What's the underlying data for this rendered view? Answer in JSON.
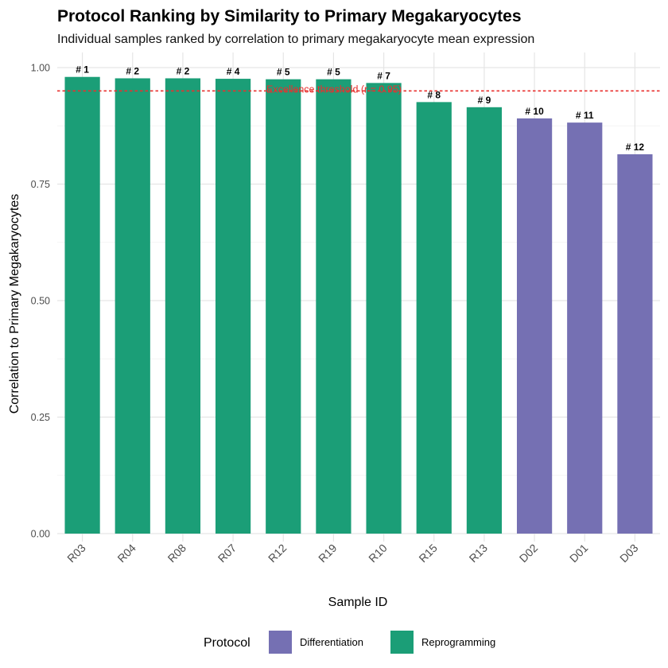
{
  "chart_data": {
    "type": "bar",
    "title": "Protocol Ranking by Similarity to Primary Megakaryocytes",
    "subtitle": "Individual samples ranked by correlation to primary megakaryocyte mean expression",
    "xlabel": "Sample ID",
    "ylabel": "Correlation to Primary Megakaryocytes",
    "ylim": [
      0,
      1.0
    ],
    "yticks": [
      0.0,
      0.25,
      0.5,
      0.75,
      1.0
    ],
    "ytick_labels": [
      "0.00",
      "0.25",
      "0.50",
      "0.75",
      "1.00"
    ],
    "grid": true,
    "categories": [
      "R03",
      "R04",
      "R08",
      "R07",
      "R12",
      "R19",
      "R10",
      "R15",
      "R13",
      "D02",
      "D01",
      "D03"
    ],
    "values": [
      0.98,
      0.977,
      0.977,
      0.976,
      0.975,
      0.975,
      0.967,
      0.926,
      0.915,
      0.891,
      0.882,
      0.814
    ],
    "rank_labels": [
      "# 1",
      "# 2",
      "# 2",
      "# 4",
      "# 5",
      "# 5",
      "# 7",
      "# 8",
      "# 9",
      "# 10",
      "# 11",
      "# 12"
    ],
    "groups": [
      "Reprogramming",
      "Reprogramming",
      "Reprogramming",
      "Reprogramming",
      "Reprogramming",
      "Reprogramming",
      "Reprogramming",
      "Reprogramming",
      "Reprogramming",
      "Differentiation",
      "Differentiation",
      "Differentiation"
    ],
    "threshold": {
      "value": 0.95,
      "label": "Excellence threshold (r = 0.95)",
      "color": "#e8312f"
    },
    "legend": {
      "title": "Protocol",
      "placement": "bottom",
      "entries": [
        {
          "name": "Differentiation",
          "color": "#7570b3"
        },
        {
          "name": "Reprogramming",
          "color": "#1b9e77"
        }
      ]
    }
  }
}
